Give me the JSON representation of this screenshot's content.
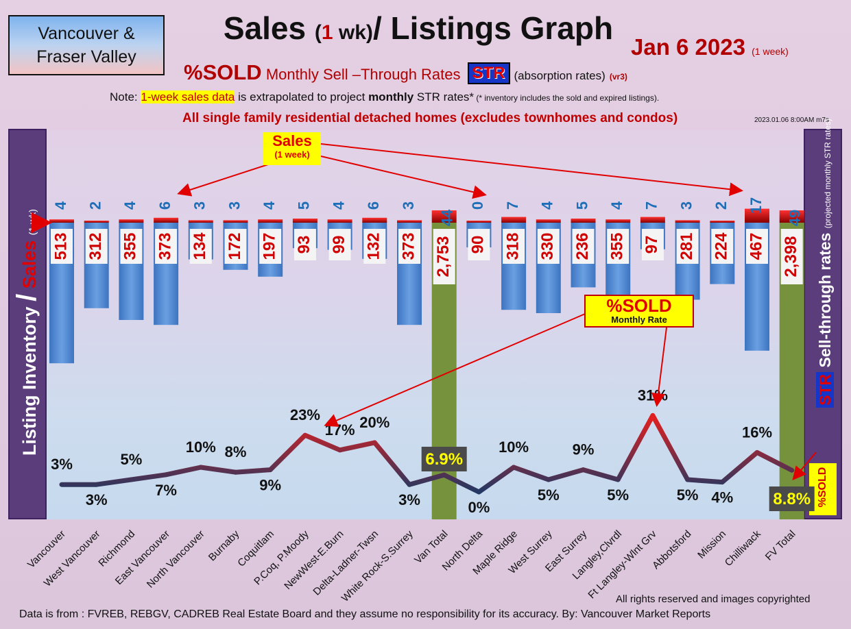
{
  "header": {
    "region_line1": "Vancouver &",
    "region_line2": "Fraser Valley",
    "title_a": "Sales ",
    "title_paren_open": "(",
    "title_one": "1",
    "title_paren_close": " wk)",
    "title_b": "/ Listings Graph",
    "date": "Jan 6  2023",
    "date_note": "(1 week)",
    "subtitle_sold": "%SOLD",
    "subtitle_rates": "Monthly Sell –Through Rates",
    "subtitle_str": "STR",
    "subtitle_abs": "(absorption rates)",
    "subtitle_vr": "(vr3)",
    "note_prefix": "Note: ",
    "note_highlight": "1-week sales data",
    "note_mid": " is extrapolated to project ",
    "note_bold": "monthly",
    "note_end": " STR rates*",
    "note_small": " (* inventory includes the sold and expired listings).",
    "homes_line": "All single family residential detached homes (excludes townhomes and condos)",
    "stamp": "2023.01.06 8:00AM m7s"
  },
  "left_axis": {
    "label": "Listing Inventory",
    "slash": "/",
    "sales": "Sales",
    "small": "(1 wk)"
  },
  "right_axis": {
    "str": "STR",
    "label": " Sell-through rates",
    "small": "(projected monthly STR rates)",
    "sold_tag": "%SOLD"
  },
  "callouts": {
    "sales_a": "Sales",
    "sales_b": "(1 week)",
    "sold_a": "%SOLD",
    "sold_b": "Monthly Rate"
  },
  "footer": {
    "rights": "All rights reserved and  images copyrighted",
    "source": "Data is from : FVREB, REBGV, CADREB Real Estate Board and they assume no responsibility for its accuracy. By: Vancouver Market Reports"
  },
  "colors": {
    "inventory_bar": "#4a86d4",
    "total_bar": "#76923c",
    "sales_bar": "#cc0000",
    "str_line_low": "#1f3864",
    "str_line_high": "#e02020"
  },
  "chart_data": {
    "type": "bar",
    "categories": [
      "Vancouver",
      "West Vancouver",
      "Richmond",
      "East Vancouver",
      "North Vancouver",
      "Burnaby",
      "Coquitlam",
      "P.Coq, P.Moody",
      "NewWest-E.Burn",
      "Delta-Ladner-Twsn",
      "White Rock-S.Surrey",
      "Van Total",
      "North Delta",
      "Maple Ridge",
      "West Surrey",
      "East Surrey",
      "Langley,Clvrdl",
      "Ft Langley-Wlnt Grv",
      "Abbotsford",
      "Mission",
      "Chilliwack",
      "FV Total"
    ],
    "series": [
      {
        "name": "Listing Inventory",
        "values": [
          513,
          312,
          355,
          373,
          134,
          172,
          197,
          93,
          99,
          132,
          373,
          2753,
          90,
          318,
          330,
          236,
          355,
          97,
          281,
          224,
          467,
          2398
        ]
      },
      {
        "name": "Sales",
        "values": [
          4,
          2,
          4,
          6,
          3,
          3,
          4,
          5,
          4,
          6,
          3,
          44,
          0,
          7,
          4,
          5,
          4,
          7,
          3,
          2,
          17,
          49
        ]
      },
      {
        "name": "%SOLD",
        "values": [
          3,
          3,
          5,
          7,
          10,
          8,
          9,
          23,
          17,
          20,
          3,
          6.9,
          0,
          10,
          5,
          9,
          5,
          31,
          5,
          4,
          16,
          8.8
        ]
      }
    ],
    "pct_labels": [
      "3%",
      "3%",
      "5%",
      "7%",
      "10%",
      "8%",
      "9%",
      "23%",
      "17%",
      "20%",
      "3%",
      "6.9%",
      "0%",
      "10%",
      "5%",
      "9%",
      "5%",
      "31%",
      "5%",
      "4%",
      "16%",
      "8.8%"
    ],
    "inventory_labels": [
      "513",
      "312",
      "355",
      "373",
      "134",
      "172",
      "197",
      "93",
      "99",
      "132",
      "373",
      "2,753",
      "90",
      "318",
      "330",
      "236",
      "355",
      "97",
      "281",
      "224",
      "467",
      "2,398"
    ],
    "totals": [
      "Van Total",
      "FV Total"
    ]
  }
}
